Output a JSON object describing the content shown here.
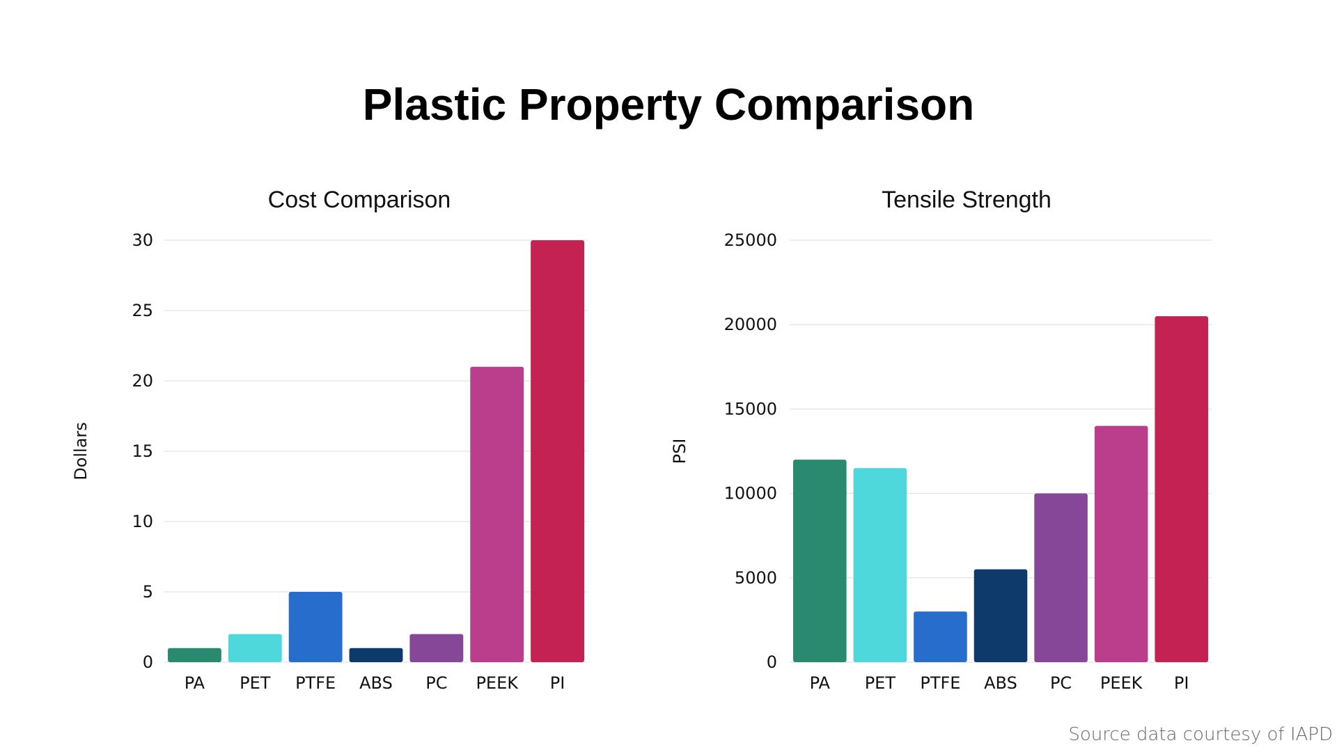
{
  "page": {
    "title": "Plastic Property Comparison",
    "source_note": "Source data courtesy of IAPD"
  },
  "chart_data": [
    {
      "type": "bar",
      "title": "Cost Comparison",
      "xlabel": "",
      "ylabel": "Dollars",
      "categories": [
        "PA",
        "PET",
        "PTFE",
        "ABS",
        "PC",
        "PEEK",
        "PI"
      ],
      "values": [
        1,
        2,
        5,
        1,
        2,
        21,
        30
      ],
      "colors": [
        "#2a8a6f",
        "#4fd8db",
        "#266dcc",
        "#0d396b",
        "#864799",
        "#ba3e8b",
        "#c52254"
      ],
      "ylim": [
        0,
        30
      ],
      "yticks": [
        0,
        5,
        10,
        15,
        20,
        25,
        30
      ],
      "grid": true,
      "legend": "none"
    },
    {
      "type": "bar",
      "title": "Tensile Strength",
      "xlabel": "",
      "ylabel": "PSI",
      "categories": [
        "PA",
        "PET",
        "PTFE",
        "ABS",
        "PC",
        "PEEK",
        "PI"
      ],
      "values": [
        12000,
        11500,
        3000,
        5500,
        10000,
        14000,
        20500
      ],
      "colors": [
        "#2a8a6f",
        "#4fd8db",
        "#266dcc",
        "#0d396b",
        "#864799",
        "#ba3e8b",
        "#c52254"
      ],
      "ylim": [
        0,
        25000
      ],
      "yticks": [
        0,
        5000,
        10000,
        15000,
        20000,
        25000
      ],
      "grid": true,
      "legend": "none"
    }
  ]
}
